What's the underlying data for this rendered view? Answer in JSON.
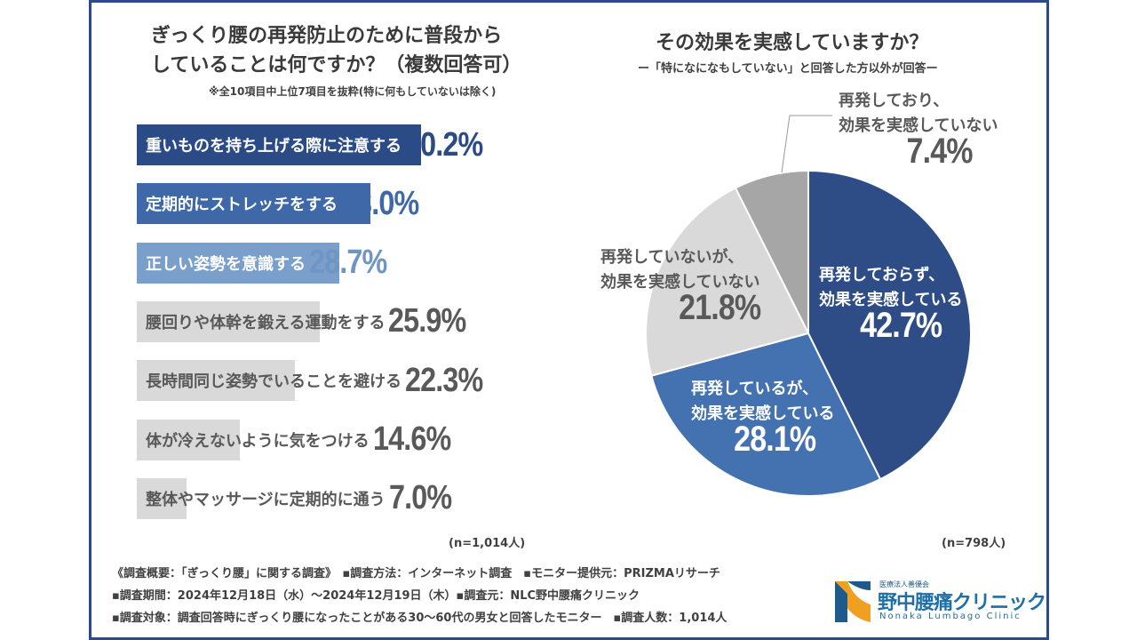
{
  "left": {
    "title_line1": "ぎっくり腰の再発防止のために普段から",
    "title_line2": "していることは何ですか？（複数回答可）",
    "note": "※全10項目中上位7項目を抜粋(特に何もしていないは除く)",
    "n": "(n=1,014人)"
  },
  "right": {
    "title": "その効果を実感していますか？",
    "subtitle": "ー「特になになもしていない」と回答した方以外が回答ー",
    "n": "(n=798人)"
  },
  "chart_data": [
    {
      "type": "bar",
      "orientation": "horizontal",
      "categories": [
        "重いものを持ち上げる際に注意する",
        "定期的にストレッチをする",
        "正しい姿勢を意識する",
        "腰回りや体幹を鍛える運動をする",
        "長時間同じ姿勢でいることを避ける",
        "体が冷えないように気をつける",
        "整体やマッサージに定期的に通う"
      ],
      "values": [
        40.2,
        33.0,
        28.7,
        25.9,
        22.3,
        14.6,
        7.0
      ],
      "labels": [
        "40.2%",
        "33.0%",
        "28.7%",
        "25.9%",
        "22.3%",
        "14.6%",
        "7.0%"
      ],
      "colors": [
        "#2b4b86",
        "#3e68a8",
        "#7a9fcb",
        "#d9d9d9",
        "#d9d9d9",
        "#d9d9d9",
        "#d9d9d9"
      ],
      "label_colors": [
        "#ffffff",
        "#ffffff",
        "#ffffff",
        "#595959",
        "#595959",
        "#595959",
        "#595959"
      ],
      "pct_colors": [
        "#2b4b86",
        "#3e68a8",
        "#6f95c3",
        "#595959",
        "#595959",
        "#595959",
        "#595959"
      ]
    },
    {
      "type": "pie",
      "slices": [
        {
          "label_line1": "再発しておらず、",
          "label_line2": "効果を実感している",
          "value": 42.7,
          "pct": "42.7%",
          "color": "#2e4d87"
        },
        {
          "label_line1": "再発しているが、",
          "label_line2": "効果を実感している",
          "value": 28.1,
          "pct": "28.1%",
          "color": "#4472b0"
        },
        {
          "label_line1": "再発していないが、",
          "label_line2": "効果を実感していない",
          "value": 21.8,
          "pct": "21.8%",
          "color": "#d9d9d9"
        },
        {
          "label_line1": "再発しており、",
          "label_line2": "効果を実感していない",
          "value": 7.4,
          "pct": "7.4%",
          "color": "#a6a6a6"
        }
      ]
    }
  ],
  "footer": {
    "line1": "《調査概要：「ぎっくり腰」に関する調査》　▪調査方法：インターネット調査　▪モニター提供元：PRIZMAリサーチ",
    "line2": "▪調査期間：2024年12月18日（水）～2024年12月19日（木）▪調査元：NLC野中腰痛クリニック",
    "line3": "▪調査対象：調査回答時にぎっくり腰になったことがある30～60代の男女と回答したモニター　▪調査人数：1,014人"
  },
  "logo": {
    "org": "医療法人善優会",
    "name": "野中腰痛クリニック",
    "roman": "Nonaka Lumbago Clinic"
  }
}
